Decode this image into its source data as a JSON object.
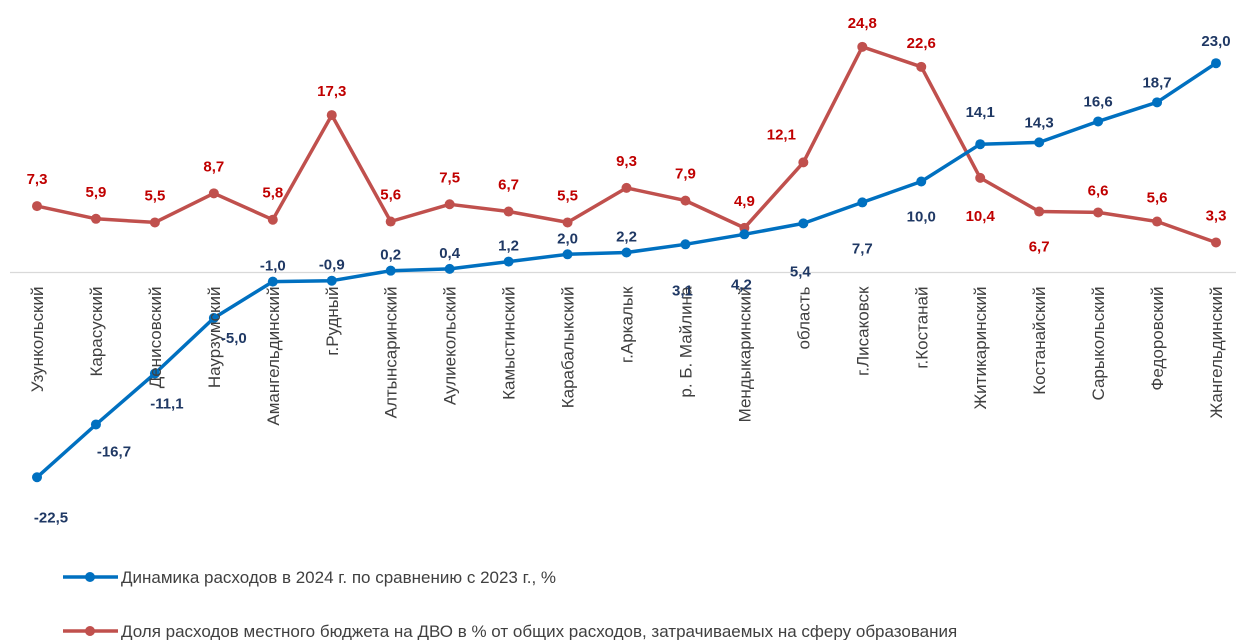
{
  "chart_data": {
    "type": "line",
    "categories": [
      "Узункольский",
      "Карасуский",
      "Денисовский",
      "Наурзумский",
      "Амангельдинский",
      "г.Рудный",
      "Алтынсаринский",
      "Аулиекольский",
      "Камыстинский",
      "Карабалыкский",
      "г.Аркалык",
      "р. Б. Майлина",
      "Мендыкаринский",
      "область",
      "г.Лисаковск",
      "г.Костанай",
      "Житикаринский",
      "Костанайский",
      "Сарыкольский",
      "Федоровский",
      "Жангельдинский"
    ],
    "series": [
      {
        "name": "Динамика расходов в 2024 г. по сравнению с 2023 г., %",
        "color": "#0070C0",
        "label_color": "#1F3864",
        "values": [
          -22.5,
          -16.7,
          -11.1,
          -5.0,
          -1.0,
          -0.9,
          0.2,
          0.4,
          1.2,
          2.0,
          2.2,
          3.1,
          4.2,
          5.4,
          7.7,
          10.0,
          14.1,
          14.3,
          16.6,
          18.7,
          23.0
        ],
        "labels": [
          "-22,5",
          "-16,7",
          "-11,1",
          "-5,0",
          "-1,0",
          "-0,9",
          "0,2",
          "0,4",
          "1,2",
          "2,0",
          "2,2",
          "3,1",
          "4,2",
          "5,4",
          "7,7",
          "10,0",
          "14,1",
          "14,3",
          "16,6",
          "18,7",
          "23,0"
        ]
      },
      {
        "name": "Доля расходов местного бюджета  на ДВО в % от общих расходов, затрачиваемых на сферу образования",
        "color": "#C0504D",
        "label_color": "#C00000",
        "values": [
          7.3,
          5.9,
          5.5,
          8.7,
          5.8,
          17.3,
          5.6,
          7.5,
          6.7,
          5.5,
          9.3,
          7.9,
          4.9,
          12.1,
          24.8,
          22.6,
          10.4,
          6.7,
          6.6,
          5.6,
          3.3
        ],
        "labels": [
          "7,3",
          "5,9",
          "5,5",
          "8,7",
          "5,8",
          "17,3",
          "5,6",
          "7,5",
          "6,7",
          "5,5",
          "9,3",
          "7,9",
          "4,9",
          "12,1",
          "24,8",
          "22,6",
          "10,4",
          "6,7",
          "6,6",
          "5,6",
          "3,3"
        ]
      }
    ],
    "legend_position": "bottom",
    "grid": false
  }
}
